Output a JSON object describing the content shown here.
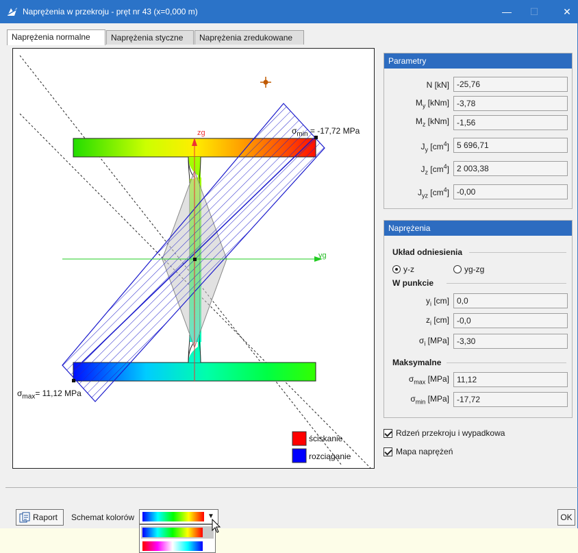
{
  "window": {
    "title": "Naprężenia w przekroju - pręt nr 43 (x=0,000 m)",
    "controls": {
      "minimize": "—",
      "maximize": "☐",
      "close": "✕"
    }
  },
  "tabs": [
    {
      "label": "Naprężenia normalne",
      "active": true
    },
    {
      "label": "Naprężenia styczne",
      "active": false
    },
    {
      "label": "Naprężenia zredukowane",
      "active": false
    }
  ],
  "diagram": {
    "axis_y": "yg",
    "axis_z": "zg",
    "sigma_min": {
      "symbol": "σ",
      "sub": "min",
      "text": " = -17,72 MPa"
    },
    "sigma_max": {
      "symbol": "σ",
      "sub": "max",
      "text": "= 11,12 MPa"
    },
    "legend": [
      {
        "label": "ściskanie",
        "color": "#ff0000"
      },
      {
        "label": "rozciąganie",
        "color": "#0000ff"
      }
    ]
  },
  "parametry": {
    "header": "Parametry",
    "rows": [
      {
        "label": "N [kN]",
        "value": "-25,76"
      },
      {
        "label": "My [kNm]",
        "value": "-3,78"
      },
      {
        "label": "Mz [kNm]",
        "value": "-1,56"
      },
      {
        "label": "Jy [cm4]",
        "value": "5 696,71"
      },
      {
        "label": "Jz [cm4]",
        "value": "2 003,38"
      },
      {
        "label": "Jyz [cm4]",
        "value": "-0,00"
      }
    ]
  },
  "naprezenia": {
    "header": "Naprężenia",
    "uklad_label": "Układ odniesienia",
    "radio_yz": "y-z",
    "radio_yzg": "yg-zg",
    "radio_selected": "y-z",
    "w_punkcie_label": "W punkcie",
    "yi": {
      "label": "yi [cm]",
      "value": "0,0"
    },
    "zi": {
      "label": "zi [cm]",
      "value": "-0,0"
    },
    "si": {
      "label": "σi [MPa]",
      "value": "-3,30"
    },
    "maksymalne_label": "Maksymalne",
    "smax": {
      "label": "σmax [MPa]",
      "value": "11,12"
    },
    "smin": {
      "label": "σmin [MPa]",
      "value": "-17,72"
    }
  },
  "options": {
    "rdzen": {
      "label": "Rdzeń przekroju i wypadkowa",
      "checked": true
    },
    "mapa": {
      "label": "Mapa naprężeń",
      "checked": true
    }
  },
  "bottom": {
    "raport": "Raport",
    "schemat_label": "Schemat kolorów",
    "ok": "OK",
    "dropdown_icon": "chevron-down-icon"
  }
}
